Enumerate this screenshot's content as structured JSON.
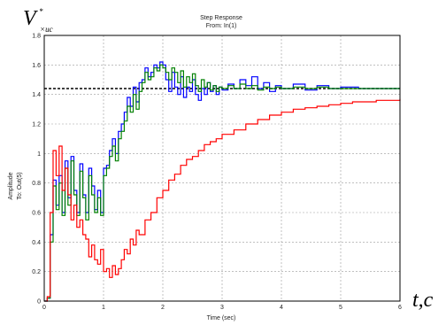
{
  "chart_data": {
    "type": "line",
    "title": "Step Response",
    "subtitle": "From: In(1)",
    "xlabel": "Time (sec)",
    "ylabel": "Amplitude",
    "ylabel2": "To: Out(5)",
    "corner_y_label": {
      "main": "V",
      "sub": "×ис",
      "sup": "*"
    },
    "corner_x_label": "t,c",
    "xlim": [
      0,
      6
    ],
    "ylim": [
      0,
      1.8
    ],
    "xticks": [
      "0",
      "1",
      "2",
      "3",
      "4",
      "5",
      "6"
    ],
    "yticks": [
      "0",
      "0.2",
      "0.4",
      "0.6",
      "0.8",
      "1",
      "1.2",
      "1.4",
      "1.6",
      "1.8"
    ],
    "grid": true,
    "reference_value": 1.44,
    "colors": {
      "blue": "#0000ff",
      "green": "#008000",
      "red": "#ff0000",
      "reference": "#000000",
      "grid": "#9a9a9a"
    },
    "series": [
      {
        "color_key": "blue",
        "x": [
          0,
          0.05,
          0.1,
          0.15,
          0.2,
          0.25,
          0.3,
          0.35,
          0.4,
          0.45,
          0.5,
          0.55,
          0.6,
          0.65,
          0.7,
          0.75,
          0.8,
          0.85,
          0.9,
          0.95,
          1.0,
          1.05,
          1.1,
          1.15,
          1.2,
          1.25,
          1.3,
          1.35,
          1.4,
          1.45,
          1.5,
          1.55,
          1.6,
          1.65,
          1.7,
          1.75,
          1.8,
          1.85,
          1.9,
          1.95,
          2.0,
          2.05,
          2.1,
          2.15,
          2.2,
          2.25,
          2.3,
          2.35,
          2.4,
          2.45,
          2.5,
          2.55,
          2.6,
          2.65,
          2.7,
          2.75,
          2.8,
          2.85,
          2.9,
          2.95,
          3.0,
          3.1,
          3.2,
          3.3,
          3.4,
          3.5,
          3.6,
          3.7,
          3.8,
          3.9,
          4.0,
          4.2,
          4.4,
          4.6,
          4.8,
          5.0,
          5.3,
          5.6,
          6.0
        ],
        "y": [
          0,
          0.02,
          0.45,
          0.82,
          0.65,
          0.85,
          0.6,
          0.95,
          0.7,
          0.98,
          0.75,
          0.6,
          0.93,
          0.72,
          0.6,
          0.9,
          0.78,
          0.62,
          0.75,
          0.6,
          0.9,
          0.92,
          1.02,
          1.1,
          1.0,
          1.15,
          1.2,
          1.28,
          1.38,
          1.32,
          1.45,
          1.35,
          1.48,
          1.5,
          1.58,
          1.52,
          1.55,
          1.6,
          1.58,
          1.62,
          1.6,
          1.5,
          1.42,
          1.55,
          1.45,
          1.4,
          1.52,
          1.38,
          1.45,
          1.42,
          1.5,
          1.4,
          1.36,
          1.44,
          1.4,
          1.48,
          1.42,
          1.46,
          1.4,
          1.45,
          1.43,
          1.47,
          1.44,
          1.5,
          1.46,
          1.52,
          1.44,
          1.48,
          1.42,
          1.46,
          1.44,
          1.47,
          1.43,
          1.46,
          1.44,
          1.45,
          1.44,
          1.44,
          1.44
        ]
      },
      {
        "color_key": "green",
        "x": [
          0,
          0.05,
          0.1,
          0.15,
          0.2,
          0.25,
          0.3,
          0.35,
          0.4,
          0.45,
          0.5,
          0.55,
          0.6,
          0.65,
          0.7,
          0.75,
          0.8,
          0.85,
          0.9,
          0.95,
          1.0,
          1.05,
          1.1,
          1.15,
          1.2,
          1.25,
          1.3,
          1.35,
          1.4,
          1.45,
          1.5,
          1.55,
          1.6,
          1.65,
          1.7,
          1.75,
          1.8,
          1.85,
          1.9,
          1.95,
          2.0,
          2.05,
          2.1,
          2.15,
          2.2,
          2.25,
          2.3,
          2.35,
          2.4,
          2.45,
          2.5,
          2.55,
          2.6,
          2.65,
          2.7,
          2.75,
          2.8,
          2.85,
          2.9,
          2.95,
          3.0,
          3.1,
          3.2,
          3.3,
          3.4,
          3.5,
          3.6,
          3.7,
          3.8,
          3.9,
          4.0,
          4.2,
          4.4,
          4.6,
          4.8,
          5.0,
          5.3,
          5.6,
          6.0
        ],
        "y": [
          0,
          0.02,
          0.4,
          0.78,
          0.62,
          0.8,
          0.58,
          0.9,
          0.65,
          0.95,
          0.72,
          0.58,
          0.88,
          0.7,
          0.55,
          0.85,
          0.72,
          0.6,
          0.7,
          0.58,
          0.85,
          0.9,
          0.98,
          1.05,
          0.95,
          1.1,
          1.15,
          1.22,
          1.32,
          1.28,
          1.4,
          1.3,
          1.42,
          1.48,
          1.55,
          1.5,
          1.52,
          1.58,
          1.56,
          1.6,
          1.58,
          1.55,
          1.5,
          1.58,
          1.55,
          1.48,
          1.56,
          1.45,
          1.52,
          1.48,
          1.54,
          1.46,
          1.42,
          1.5,
          1.45,
          1.48,
          1.43,
          1.46,
          1.42,
          1.45,
          1.44,
          1.46,
          1.44,
          1.47,
          1.44,
          1.46,
          1.43,
          1.45,
          1.44,
          1.45,
          1.44,
          1.45,
          1.44,
          1.45,
          1.44,
          1.44,
          1.44,
          1.44,
          1.44
        ]
      },
      {
        "color_key": "red",
        "x": [
          0,
          0.05,
          0.1,
          0.15,
          0.2,
          0.25,
          0.3,
          0.35,
          0.4,
          0.45,
          0.5,
          0.55,
          0.6,
          0.65,
          0.7,
          0.75,
          0.8,
          0.85,
          0.9,
          0.95,
          1.0,
          1.05,
          1.1,
          1.15,
          1.2,
          1.25,
          1.3,
          1.35,
          1.4,
          1.45,
          1.5,
          1.55,
          1.6,
          1.7,
          1.8,
          1.9,
          2.0,
          2.1,
          2.2,
          2.3,
          2.4,
          2.5,
          2.6,
          2.7,
          2.8,
          2.9,
          3.0,
          3.2,
          3.4,
          3.6,
          3.8,
          4.0,
          4.2,
          4.4,
          4.6,
          4.8,
          5.0,
          5.2,
          5.4,
          5.6,
          5.8,
          6.0
        ],
        "y": [
          0,
          0.03,
          0.6,
          1.02,
          0.85,
          1.05,
          0.75,
          0.9,
          0.72,
          0.55,
          0.65,
          0.5,
          0.55,
          0.45,
          0.42,
          0.3,
          0.38,
          0.28,
          0.25,
          0.35,
          0.2,
          0.22,
          0.16,
          0.24,
          0.18,
          0.22,
          0.28,
          0.35,
          0.32,
          0.42,
          0.38,
          0.48,
          0.45,
          0.55,
          0.6,
          0.7,
          0.75,
          0.82,
          0.86,
          0.92,
          0.96,
          0.98,
          1.02,
          1.06,
          1.08,
          1.1,
          1.13,
          1.16,
          1.2,
          1.23,
          1.26,
          1.28,
          1.3,
          1.31,
          1.32,
          1.33,
          1.34,
          1.35,
          1.35,
          1.36,
          1.36,
          1.37
        ]
      }
    ]
  }
}
